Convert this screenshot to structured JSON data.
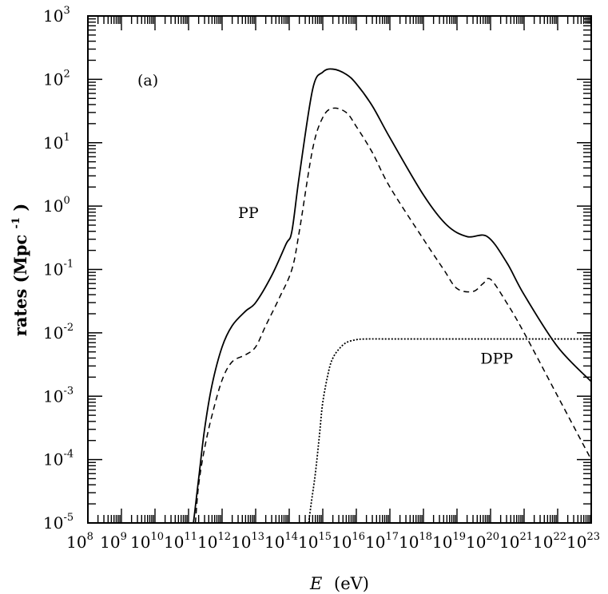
{
  "chart_data": {
    "type": "line",
    "panel_label": "(a)",
    "xlabel": "E",
    "xlabel_unit": "(eV)",
    "ylabel": "rates (Mpc",
    "ylabel_exp": "-1",
    "ylabel_close": ")",
    "xscale": "log",
    "yscale": "log",
    "xlim": [
      100000000.0,
      1e+23
    ],
    "ylim": [
      1e-05,
      1000.0
    ],
    "x_ticks": [
      {
        "base": "10",
        "exp": "8"
      },
      {
        "base": "10",
        "exp": "9"
      },
      {
        "base": "10",
        "exp": "10"
      },
      {
        "base": "10",
        "exp": "11"
      },
      {
        "base": "10",
        "exp": "12"
      },
      {
        "base": "10",
        "exp": "13"
      },
      {
        "base": "10",
        "exp": "14"
      },
      {
        "base": "10",
        "exp": "15"
      },
      {
        "base": "10",
        "exp": "16"
      },
      {
        "base": "10",
        "exp": "17"
      },
      {
        "base": "10",
        "exp": "18"
      },
      {
        "base": "10",
        "exp": "19"
      },
      {
        "base": "10",
        "exp": "20"
      },
      {
        "base": "10",
        "exp": "21"
      },
      {
        "base": "10",
        "exp": "22"
      },
      {
        "base": "10",
        "exp": "23"
      }
    ],
    "y_ticks": [
      {
        "base": "10",
        "exp": "-5"
      },
      {
        "base": "10",
        "exp": "-4"
      },
      {
        "base": "10",
        "exp": "-3"
      },
      {
        "base": "10",
        "exp": "-2"
      },
      {
        "base": "10",
        "exp": "-1"
      },
      {
        "base": "10",
        "exp": "0"
      },
      {
        "base": "10",
        "exp": "1"
      },
      {
        "base": "10",
        "exp": "2"
      },
      {
        "base": "10",
        "exp": "3"
      }
    ],
    "annotations": [
      {
        "text": "PP",
        "x": 3000000000000.0,
        "y": 0.8
      },
      {
        "text": "DPP",
        "x": 5e+19,
        "y": 0.004
      }
    ],
    "series": [
      {
        "style": "solid",
        "x": [
          140000000000.0,
          200000000000.0,
          300000000000.0,
          500000000000.0,
          1000000000000.0,
          2000000000000.0,
          5000000000000.0,
          10000000000000.0,
          30000000000000.0,
          80000000000000.0,
          120000000000000.0,
          200000000000000.0,
          500000000000000.0,
          1000000000000000.0,
          2000000000000000.0,
          5000000000000000.0,
          1e+16,
          3e+16,
          1e+17,
          1e+18,
          5e+18,
          2e+19,
          8e+19,
          3e+20,
          1e+21,
          1e+22,
          1e+23
        ],
        "y": [
          1e-05,
          5e-05,
          0.0003,
          0.0015,
          0.006,
          0.013,
          0.022,
          0.03,
          0.08,
          0.25,
          0.4,
          3,
          70,
          130,
          145,
          120,
          85,
          38,
          12,
          1.5,
          0.5,
          0.33,
          0.33,
          0.13,
          0.04,
          0.006,
          0.0017
        ]
      },
      {
        "style": "dashed",
        "x": [
          160000000000.0,
          200000000000.0,
          300000000000.0,
          500000000000.0,
          1000000000000.0,
          2000000000000.0,
          5000000000000.0,
          10000000000000.0,
          20000000000000.0,
          50000000000000.0,
          120000000000000.0,
          200000000000000.0,
          500000000000000.0,
          1000000000000000.0,
          2000000000000000.0,
          5000000000000000.0,
          1e+16,
          3e+16,
          1e+17,
          1e+18,
          4e+18,
          1e+19,
          3e+19,
          6e+19,
          1e+20,
          3e+20,
          1e+21,
          1e+22,
          1e+23
        ],
        "y": [
          1e-05,
          4e-05,
          0.00015,
          0.0005,
          0.0018,
          0.0035,
          0.0045,
          0.006,
          0.013,
          0.035,
          0.1,
          0.4,
          8,
          25,
          35,
          30,
          18,
          7,
          2,
          0.3,
          0.1,
          0.05,
          0.045,
          0.06,
          0.07,
          0.03,
          0.01,
          0.001,
          0.0001
        ]
      },
      {
        "style": "dotted",
        "x": [
          380000000000000.0,
          450000000000000.0,
          600000000000000.0,
          800000000000000.0,
          1000000000000000.0,
          1500000000000000.0,
          2000000000000000.0,
          3000000000000000.0,
          5000000000000000.0,
          1e+16,
          2e+16,
          1e+17,
          1e+18,
          1e+20,
          1e+22,
          1e+23
        ],
        "y": [
          1e-05,
          2e-05,
          6e-05,
          0.00025,
          0.0008,
          0.0025,
          0.004,
          0.0055,
          0.007,
          0.0078,
          0.008,
          0.008,
          0.008,
          0.008,
          0.008,
          0.008
        ]
      }
    ]
  }
}
